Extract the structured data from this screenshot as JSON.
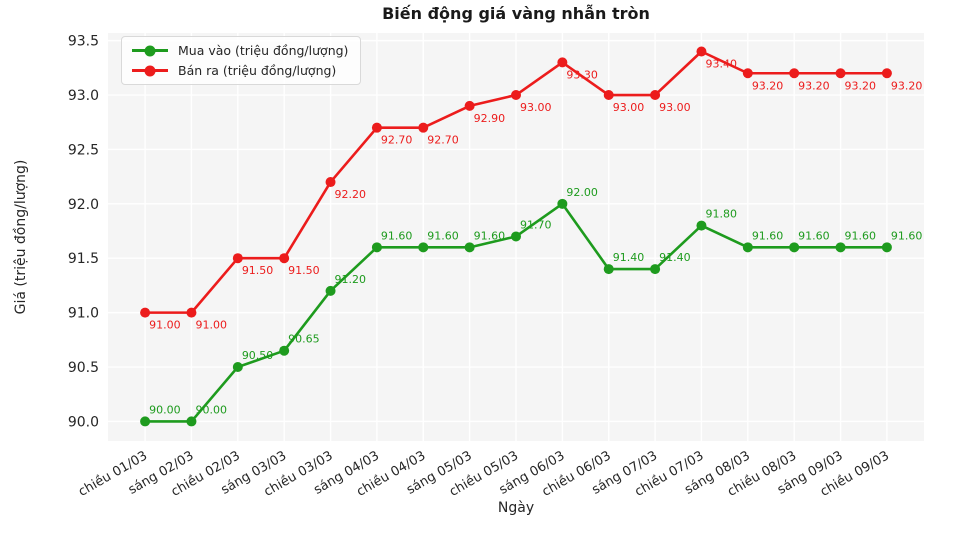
{
  "chart_data": {
    "type": "line",
    "title": "Biến động giá vàng nhẫn tròn",
    "xlabel": "Ngày",
    "ylabel": "Giá (triệu đồng/lượng)",
    "categories": [
      "chiều 01/03",
      "sáng 02/03",
      "chiều 02/03",
      "sáng 03/03",
      "chiều 03/03",
      "sáng 04/03",
      "chiều 04/03",
      "sáng 05/03",
      "chiều 05/03",
      "sáng 06/03",
      "chiều 06/03",
      "sáng 07/03",
      "chiều 07/03",
      "sáng 08/03",
      "chiều 08/03",
      "sáng 09/03",
      "chiều 09/03"
    ],
    "series": [
      {
        "name": "Mua vào (triệu đồng/lượng)",
        "color": "#1e9b1e",
        "values": [
          90.0,
          90.0,
          90.5,
          90.65,
          91.2,
          91.6,
          91.6,
          91.6,
          91.7,
          92.0,
          91.4,
          91.4,
          91.8,
          91.6,
          91.6,
          91.6,
          91.6
        ]
      },
      {
        "name": "Bán ra (triệu đồng/lượng)",
        "color": "#ec1c1c",
        "values": [
          91.0,
          91.0,
          91.5,
          91.5,
          92.2,
          92.7,
          92.7,
          92.9,
          93.0,
          93.3,
          93.0,
          93.0,
          93.4,
          93.2,
          93.2,
          93.2,
          93.2
        ]
      }
    ],
    "yticks": [
      90.0,
      90.5,
      91.0,
      91.5,
      92.0,
      92.5,
      93.0,
      93.5
    ],
    "ylim": [
      89.82,
      93.57
    ],
    "grid": true,
    "legend_position": "upper left",
    "plot_bg": "#f5f5f5",
    "grid_color": "#ffffff",
    "tick_color": "#262626"
  }
}
